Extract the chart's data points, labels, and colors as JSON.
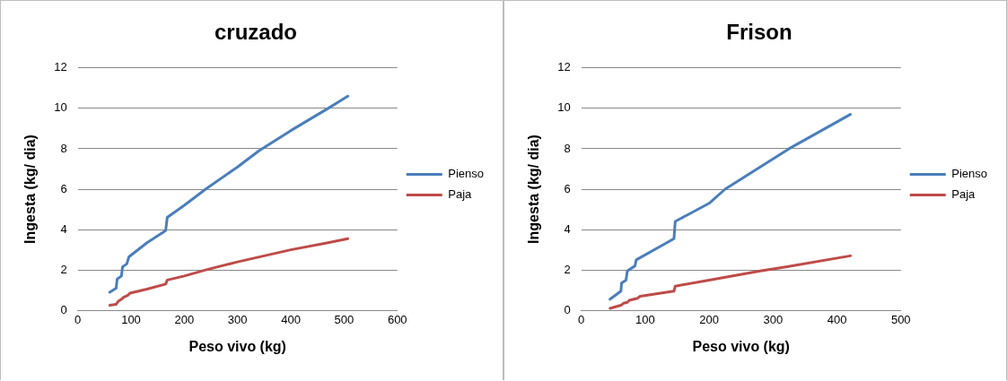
{
  "chart_data": [
    {
      "type": "line",
      "title": "cruzado",
      "xlabel": "Peso vivo (kg)",
      "ylabel": "Ingesta (kg/ dia)",
      "xlim": [
        0,
        600
      ],
      "xticks": [
        0,
        100,
        200,
        300,
        400,
        500,
        600
      ],
      "ylim": [
        0,
        12
      ],
      "yticks": [
        0,
        2,
        4,
        6,
        8,
        10,
        12
      ],
      "grid": "y",
      "legend": "right",
      "marker": "none",
      "line_style": "solid",
      "series": [
        {
          "name": "Pienso",
          "color": "#4a7ebb",
          "x": [
            60,
            72,
            74,
            82,
            84,
            92,
            96,
            130,
            165,
            168,
            200,
            240,
            300,
            340,
            400,
            470,
            507
          ],
          "values": [
            0.9,
            1.1,
            1.55,
            1.7,
            2.15,
            2.3,
            2.65,
            3.35,
            3.95,
            4.6,
            5.2,
            6.0,
            7.1,
            7.9,
            8.9,
            10.0,
            10.6
          ]
        },
        {
          "name": "Paja",
          "color": "#be4b48",
          "x": [
            60,
            72,
            76,
            82,
            86,
            94,
            98,
            130,
            165,
            168,
            200,
            240,
            300,
            400,
            470,
            507
          ],
          "values": [
            0.25,
            0.3,
            0.45,
            0.55,
            0.65,
            0.75,
            0.85,
            1.05,
            1.3,
            1.5,
            1.7,
            2.0,
            2.4,
            3.0,
            3.35,
            3.55
          ]
        }
      ]
    },
    {
      "type": "line",
      "title": "Frison",
      "xlabel": "Peso vivo (kg)",
      "ylabel": "Ingesta (kg/ dia)",
      "xlim": [
        0,
        500
      ],
      "xticks": [
        0,
        100,
        200,
        300,
        400,
        500
      ],
      "ylim": [
        0,
        12
      ],
      "yticks": [
        0,
        2,
        4,
        6,
        8,
        10,
        12
      ],
      "grid": "y",
      "legend": "right",
      "marker": "none",
      "line_style": "solid",
      "series": [
        {
          "name": "Pienso",
          "color": "#4a7ebb",
          "x": [
            45,
            62,
            63,
            70,
            72,
            84,
            86,
            145,
            147,
            200,
            225,
            300,
            325,
            421
          ],
          "values": [
            0.55,
            0.95,
            1.35,
            1.5,
            1.95,
            2.2,
            2.5,
            3.55,
            4.4,
            5.3,
            6.0,
            7.5,
            8.0,
            9.7
          ]
        },
        {
          "name": "Paja",
          "color": "#be4b48",
          "x": [
            45,
            62,
            66,
            72,
            75,
            88,
            92,
            145,
            147,
            200,
            280,
            320,
            421
          ],
          "values": [
            0.1,
            0.25,
            0.35,
            0.4,
            0.5,
            0.6,
            0.7,
            0.95,
            1.2,
            1.5,
            1.95,
            2.15,
            2.7
          ]
        }
      ]
    }
  ]
}
